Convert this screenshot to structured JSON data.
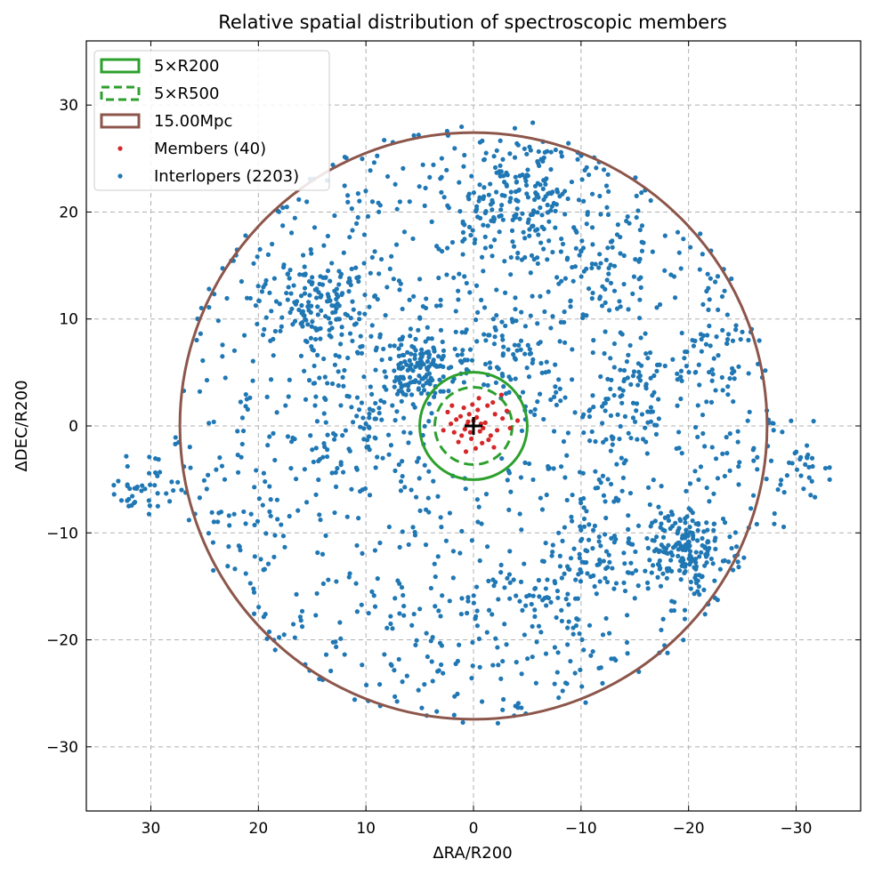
{
  "chart_data": {
    "type": "scatter",
    "title": "Relative spatial distribution of spectroscopic members",
    "xlabel": "ΔRA/R200",
    "ylabel": "ΔDEC/R200",
    "xlim": [
      36,
      -36
    ],
    "ylim": [
      -36,
      36
    ],
    "x_ticks": [
      30,
      20,
      10,
      0,
      -10,
      -20,
      -30
    ],
    "y_ticks": [
      30,
      20,
      10,
      0,
      -10,
      -20,
      -30
    ],
    "x_tick_labels": [
      "30",
      "20",
      "10",
      "0",
      "−10",
      "−20",
      "−30"
    ],
    "y_tick_labels": [
      "30",
      "20",
      "10",
      "0",
      "−10",
      "−20",
      "−30"
    ],
    "grid": true,
    "legend_position": "top-left",
    "center_marker": [
      0,
      0
    ],
    "circles": [
      {
        "name": "5×R200",
        "radius": 5.0,
        "style": "solid",
        "color": "#2ca02c"
      },
      {
        "name": "5×R500",
        "radius": 3.6,
        "style": "dashed",
        "color": "#2ca02c"
      },
      {
        "name": "15.00Mpc",
        "radius": 27.3,
        "style": "solid",
        "color": "#8c564b"
      }
    ],
    "legend": [
      {
        "label": "5×R200",
        "kind": "box-solid",
        "color": "#2ca02c"
      },
      {
        "label": "5×R500",
        "kind": "box-dashed",
        "color": "#2ca02c"
      },
      {
        "label": "15.00Mpc",
        "kind": "box-solid",
        "color": "#8c564b"
      },
      {
        "label": "Members (40)",
        "kind": "dot",
        "color": "#d62728"
      },
      {
        "label": "Interlopers (2203)",
        "kind": "dot",
        "color": "#1f77b4"
      }
    ],
    "members": {
      "name": "Members (40)",
      "count": 40,
      "color": "#d62728",
      "points": [
        [
          0.5,
          0.4
        ],
        [
          -0.3,
          0.8
        ],
        [
          0.8,
          -0.3
        ],
        [
          -0.6,
          -0.5
        ],
        [
          1.2,
          0.9
        ],
        [
          -1.1,
          0.3
        ],
        [
          0.2,
          -1.2
        ],
        [
          -0.4,
          1.5
        ],
        [
          1.8,
          -0.6
        ],
        [
          -1.6,
          -0.9
        ],
        [
          0.9,
          1.7
        ],
        [
          -0.8,
          -1.6
        ],
        [
          2.1,
          0.2
        ],
        [
          -2.0,
          1.1
        ],
        [
          0.1,
          2.0
        ],
        [
          -0.2,
          -2.1
        ],
        [
          1.4,
          -1.5
        ],
        [
          -1.3,
          1.9
        ],
        [
          2.4,
          1.3
        ],
        [
          -2.2,
          -0.4
        ],
        [
          0.6,
          0.1
        ],
        [
          -0.7,
          0.2
        ],
        [
          0.3,
          -0.6
        ],
        [
          -1.8,
          2.2
        ],
        [
          -2.6,
          2.9
        ],
        [
          -3.1,
          1.4
        ],
        [
          1.6,
          0.6
        ],
        [
          -0.9,
          -0.2
        ],
        [
          0.4,
          1.1
        ],
        [
          -1.4,
          -1.3
        ],
        [
          2.8,
          -0.4
        ],
        [
          -2.7,
          0.7
        ],
        [
          1.1,
          -0.9
        ],
        [
          -0.5,
          2.6
        ],
        [
          0.7,
          -2.4
        ],
        [
          -3.4,
          -0.2
        ],
        [
          -4.1,
          0.5
        ],
        [
          2.0,
          1.9
        ],
        [
          -1.9,
          -2.0
        ],
        [
          0.0,
          0.5
        ]
      ]
    },
    "interlopers": {
      "name": "Interlopers (2203)",
      "count": 2203,
      "color": "#1f77b4",
      "clusters": [
        {
          "center": [
            5,
            5.5
          ],
          "spread": 1.8,
          "n": 150
        },
        {
          "center": [
            -19.5,
            -11.5
          ],
          "spread": 2.0,
          "n": 180
        },
        {
          "center": [
            -2.5,
            20.5
          ],
          "spread": 2.8,
          "n": 110
        },
        {
          "center": [
            -6,
            22
          ],
          "spread": 2.0,
          "n": 60
        },
        {
          "center": [
            13,
            11
          ],
          "spread": 2.2,
          "n": 80
        },
        {
          "center": [
            -14.5,
            2.5
          ],
          "spread": 2.0,
          "n": 60
        },
        {
          "center": [
            -11.5,
            -12
          ],
          "spread": 2.0,
          "n": 50
        },
        {
          "center": [
            -6.5,
            -15
          ],
          "spread": 1.8,
          "n": 40
        },
        {
          "center": [
            31,
            -5.5
          ],
          "spread": 1.5,
          "n": 40
        },
        {
          "center": [
            -12,
            16
          ],
          "spread": 2.5,
          "n": 60
        },
        {
          "center": [
            16,
            11
          ],
          "spread": 2.5,
          "n": 60
        },
        {
          "center": [
            -3,
            6
          ],
          "spread": 2.5,
          "n": 70
        },
        {
          "center": [
            10.5,
            0
          ],
          "spread": 2.2,
          "n": 60
        },
        {
          "center": [
            -22,
            6
          ],
          "spread": 2.5,
          "n": 50
        },
        {
          "center": [
            -30,
            -4
          ],
          "spread": 2.0,
          "n": 45
        }
      ],
      "background": {
        "radius": 28,
        "n": 1088
      }
    }
  }
}
